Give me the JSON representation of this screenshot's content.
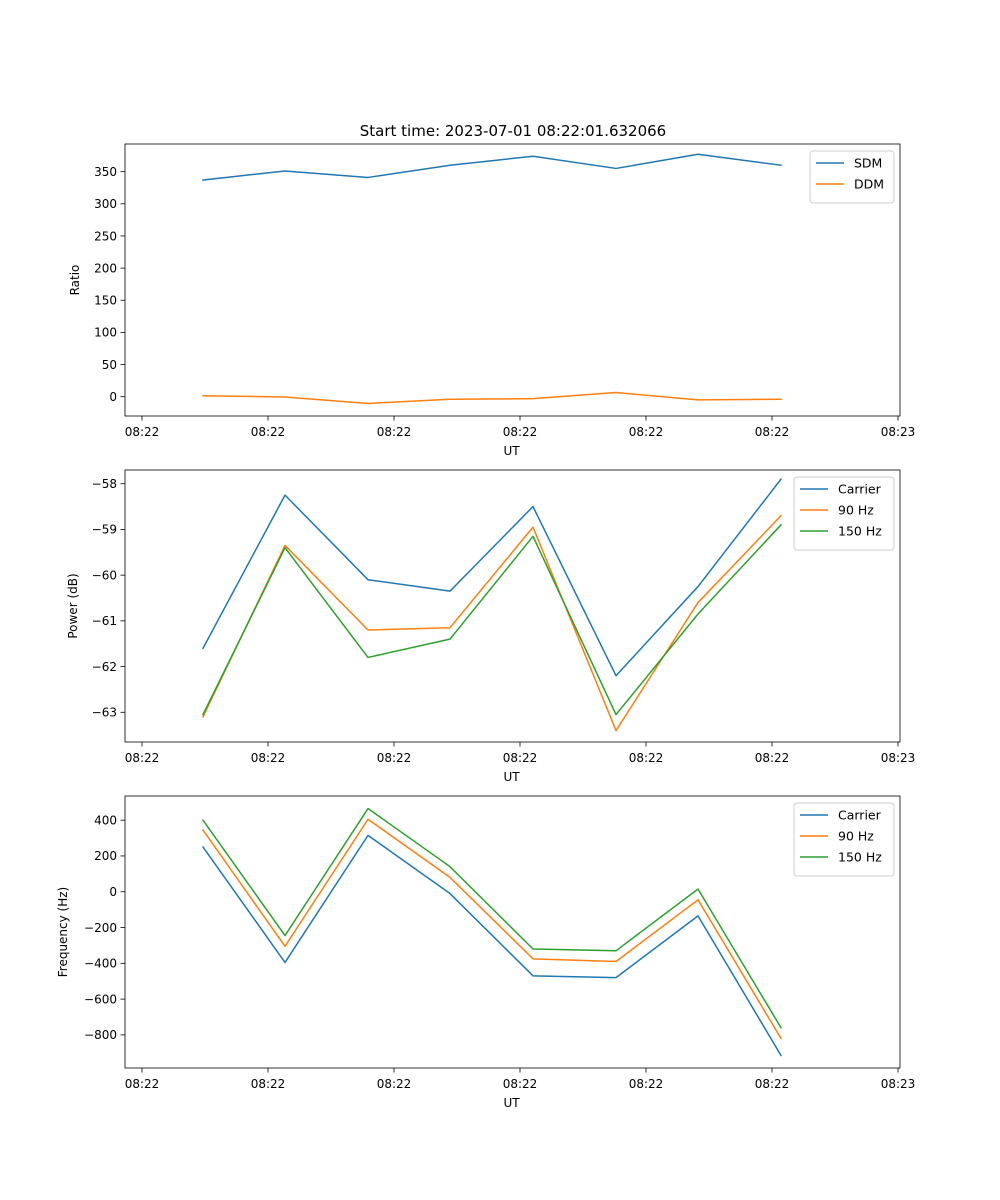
{
  "title": "Start time: 2023-07-01 08:22:01.632066",
  "colors": {
    "blue": "#1f77b4",
    "orange": "#ff7f0e",
    "green": "#2ca02c"
  },
  "chart_data": [
    {
      "type": "line",
      "title": "Start time: 2023-07-01 08:22:01.632066",
      "xlabel": "UT",
      "ylabel": "Ratio",
      "x_tick_labels": [
        "08:22",
        "08:22",
        "08:22",
        "08:22",
        "08:22",
        "08:22",
        "08:23"
      ],
      "y_ticks": [
        0,
        50,
        100,
        150,
        200,
        250,
        300,
        350
      ],
      "ylim": [
        -30,
        393
      ],
      "legend": "top-right",
      "grid": false,
      "series": [
        {
          "name": "SDM",
          "color": "#1f77b4",
          "values": [
            337,
            351,
            341,
            360,
            374,
            355,
            377,
            360
          ]
        },
        {
          "name": "DDM",
          "color": "#ff7f0e",
          "values": [
            1.5,
            -0.5,
            -10.5,
            -4,
            -3,
            6.5,
            -5,
            -4
          ]
        }
      ]
    },
    {
      "type": "line",
      "xlabel": "UT",
      "ylabel": "Power (dB)",
      "x_tick_labels": [
        "08:22",
        "08:22",
        "08:22",
        "08:22",
        "08:22",
        "08:22",
        "08:23"
      ],
      "y_ticks": [
        -63,
        -62,
        -61,
        -60,
        -59,
        -58
      ],
      "ylim": [
        -63.65,
        -57.7
      ],
      "legend": "top-right",
      "grid": false,
      "series": [
        {
          "name": "Carrier",
          "color": "#1f77b4",
          "values": [
            -61.6,
            -58.25,
            -60.1,
            -60.35,
            -58.5,
            -62.2,
            -60.25,
            -57.9
          ]
        },
        {
          "name": "90 Hz",
          "color": "#ff7f0e",
          "values": [
            -63.1,
            -59.35,
            -61.2,
            -61.15,
            -58.95,
            -63.4,
            -60.6,
            -58.7
          ]
        },
        {
          "name": "150 Hz",
          "color": "#2ca02c",
          "values": [
            -63.05,
            -59.4,
            -61.8,
            -61.4,
            -59.15,
            -63.05,
            -60.85,
            -58.9
          ]
        }
      ]
    },
    {
      "type": "line",
      "xlabel": "UT",
      "ylabel": "Frequency (Hz)",
      "x_tick_labels": [
        "08:22",
        "08:22",
        "08:22",
        "08:22",
        "08:22",
        "08:22",
        "08:23"
      ],
      "y_ticks": [
        -800,
        -600,
        -400,
        -200,
        0,
        200,
        400
      ],
      "ylim": [
        -985,
        535
      ],
      "legend": "top-right",
      "grid": false,
      "series": [
        {
          "name": "Carrier",
          "color": "#1f77b4",
          "values": [
            250,
            -395,
            315,
            -10,
            -470,
            -480,
            -135,
            -915
          ]
        },
        {
          "name": "90 Hz",
          "color": "#ff7f0e",
          "values": [
            345,
            -305,
            405,
            80,
            -375,
            -390,
            -45,
            -820
          ]
        },
        {
          "name": "150 Hz",
          "color": "#2ca02c",
          "values": [
            400,
            -245,
            465,
            140,
            -320,
            -330,
            15,
            -760
          ]
        }
      ]
    }
  ]
}
